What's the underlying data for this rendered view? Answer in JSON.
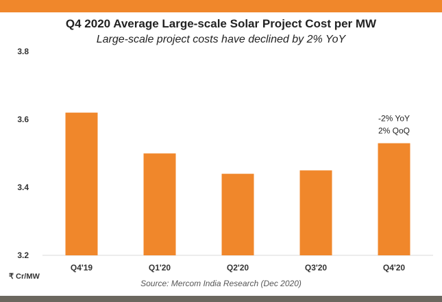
{
  "header": {
    "accent_color": "#f0872b"
  },
  "footer": {
    "source": "Source: Mercom India Research (Dec 2020)",
    "bar_color": "#6b675f"
  },
  "chart_data": {
    "type": "bar",
    "title": "Q4 2020 Average Large-scale Solar Project Cost per MW",
    "subtitle": "Large-scale project costs have declined by 2% YoY",
    "categories": [
      "Q4'19",
      "Q1'20",
      "Q2'20",
      "Q3'20",
      "Q4'20"
    ],
    "series": [
      {
        "values": [
          3.62,
          3.5,
          3.44,
          3.45,
          3.53
        ],
        "color": "#f0872b"
      }
    ],
    "ylabel": "₹ Cr/MW",
    "ylim": [
      3.2,
      3.8
    ],
    "yticks": [
      "3.2",
      "3.4",
      "3.6",
      "3.8"
    ],
    "grid": false,
    "annotations": [
      {
        "category": "Q4'20",
        "lines": [
          "-2% YoY",
          "2% QoQ"
        ]
      }
    ]
  }
}
